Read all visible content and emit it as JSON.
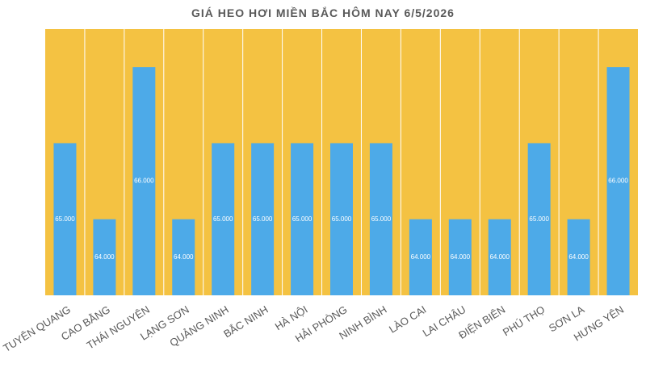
{
  "chart_data": {
    "type": "bar",
    "title": "GIÁ HEO HƠI MIỀN BẮC HÔM NAY 6/5/2026",
    "categories": [
      "TUYÊN QUANG",
      "CAO BẰNG",
      "THÁI NGUYÊN",
      "LẠNG SƠN",
      "QUẢNG NINH",
      "BẮC NINH",
      "HÀ NỘI",
      "HẢI PHÒNG",
      "NINH BÌNH",
      "LÀO CAI",
      "LAI CHÂU",
      "ĐIỆN BIÊN",
      "PHÚ THỌ",
      "SƠN LA",
      "HƯNG YÊN"
    ],
    "values": [
      65000,
      64000,
      66000,
      64000,
      65000,
      65000,
      65000,
      65000,
      65000,
      64000,
      64000,
      64000,
      65000,
      64000,
      66000
    ],
    "value_labels": [
      "65.000",
      "64.000",
      "66.000",
      "64.000",
      "65.000",
      "65.000",
      "65.000",
      "65.000",
      "65.000",
      "64.000",
      "64.000",
      "64.000",
      "65.000",
      "64.000",
      "66.000"
    ],
    "color": "#4DAAE8",
    "background": "#F4C242",
    "ylim": [
      63000,
      66500
    ]
  }
}
